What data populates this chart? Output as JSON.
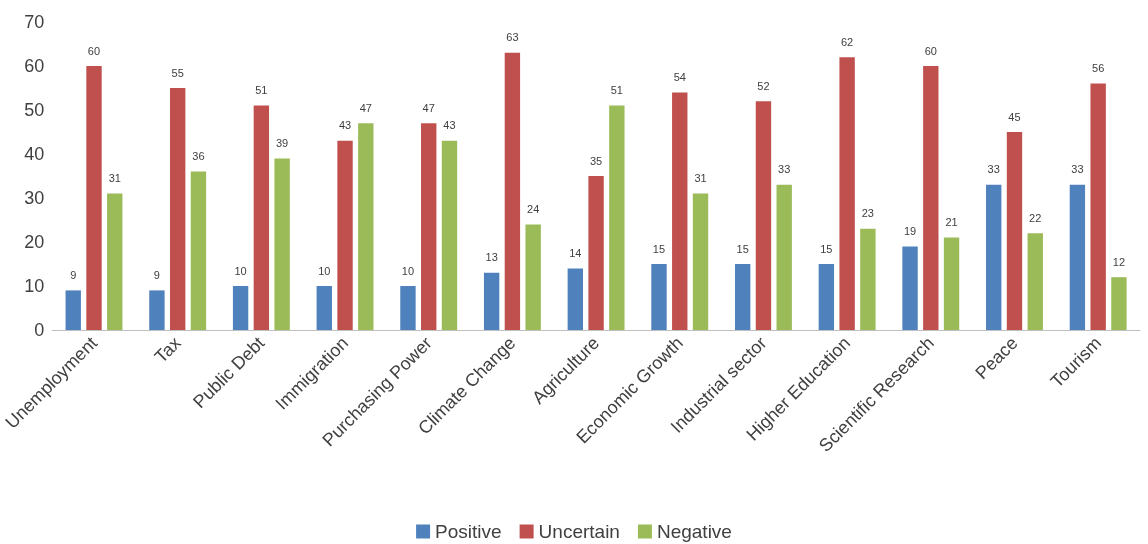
{
  "chart_data": {
    "type": "bar",
    "categories": [
      "Unemployment",
      "Tax",
      "Public Debt",
      "Immigration",
      "Purchasing Power",
      "Climate Change",
      "Agriculture",
      "Economic Growth",
      "Industrial sector",
      "Higher Education",
      "Scientific Research",
      "Peace",
      "Tourism"
    ],
    "series": [
      {
        "name": "Positive",
        "color": "#4f81bd",
        "values": [
          9,
          9,
          10,
          10,
          10,
          13,
          14,
          15,
          15,
          15,
          19,
          33,
          33
        ]
      },
      {
        "name": "Uncertain",
        "color": "#c0504d",
        "values": [
          60,
          55,
          51,
          43,
          47,
          63,
          35,
          54,
          52,
          62,
          60,
          45,
          56
        ]
      },
      {
        "name": "Negative",
        "color": "#9bbb59",
        "values": [
          31,
          36,
          39,
          47,
          43,
          24,
          51,
          31,
          33,
          23,
          21,
          22,
          12
        ]
      }
    ],
    "ylim": [
      0,
      70
    ],
    "yticks": [
      0,
      10,
      20,
      30,
      40,
      50,
      60,
      70
    ],
    "grid": false,
    "legend": "bottom",
    "data_labels": true
  }
}
